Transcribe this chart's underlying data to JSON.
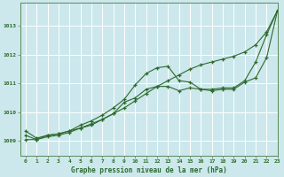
{
  "background_color": "#cce8ec",
  "grid_color": "#b0d0d8",
  "line_color": "#2d6a2d",
  "marker_color": "#2d6a2d",
  "title": "Graphe pression niveau de la mer (hPa)",
  "xlim": [
    -0.5,
    23
  ],
  "ylim": [
    1008.5,
    1013.8
  ],
  "yticks": [
    1009,
    1010,
    1011,
    1012,
    1013
  ],
  "xticks": [
    0,
    1,
    2,
    3,
    4,
    5,
    6,
    7,
    8,
    9,
    10,
    11,
    12,
    13,
    14,
    15,
    16,
    17,
    18,
    19,
    20,
    21,
    22,
    23
  ],
  "series": [
    {
      "x": [
        0,
        1,
        2,
        3,
        4,
        5,
        6,
        7,
        8,
        9,
        10,
        11,
        12,
        13,
        14,
        15,
        16,
        17,
        18,
        19,
        20,
        21,
        22,
        23
      ],
      "y": [
        1009.2,
        1009.05,
        1009.15,
        1009.2,
        1009.3,
        1009.45,
        1009.55,
        1009.75,
        1009.95,
        1010.15,
        1010.4,
        1010.65,
        1010.9,
        1011.1,
        1011.3,
        1011.5,
        1011.65,
        1011.75,
        1011.85,
        1011.95,
        1012.1,
        1012.35,
        1012.8,
        1013.55
      ]
    },
    {
      "x": [
        0,
        1,
        2,
        3,
        4,
        5,
        6,
        7,
        8,
        9,
        10,
        11,
        12,
        13,
        14,
        15,
        16,
        17,
        18,
        19,
        20,
        21,
        22,
        23
      ],
      "y": [
        1009.35,
        1009.1,
        1009.2,
        1009.25,
        1009.35,
        1009.55,
        1009.7,
        1009.9,
        1010.15,
        1010.45,
        1010.95,
        1011.35,
        1011.55,
        1011.6,
        1011.1,
        1011.05,
        1010.8,
        1010.8,
        1010.85,
        1010.85,
        1011.1,
        1011.75,
        1012.7,
        1013.55
      ]
    },
    {
      "x": [
        0,
        1,
        2,
        3,
        4,
        5,
        6,
        7,
        8,
        9,
        10,
        11,
        12,
        13,
        14,
        15,
        16,
        17,
        18,
        19,
        20,
        21,
        22,
        23
      ],
      "y": [
        1009.05,
        1009.05,
        1009.2,
        1009.25,
        1009.35,
        1009.45,
        1009.6,
        1009.75,
        1009.95,
        1010.35,
        1010.5,
        1010.8,
        1010.9,
        1010.9,
        1010.75,
        1010.85,
        1010.8,
        1010.75,
        1010.8,
        1010.8,
        1011.05,
        1011.2,
        1011.9,
        1013.55
      ]
    }
  ]
}
